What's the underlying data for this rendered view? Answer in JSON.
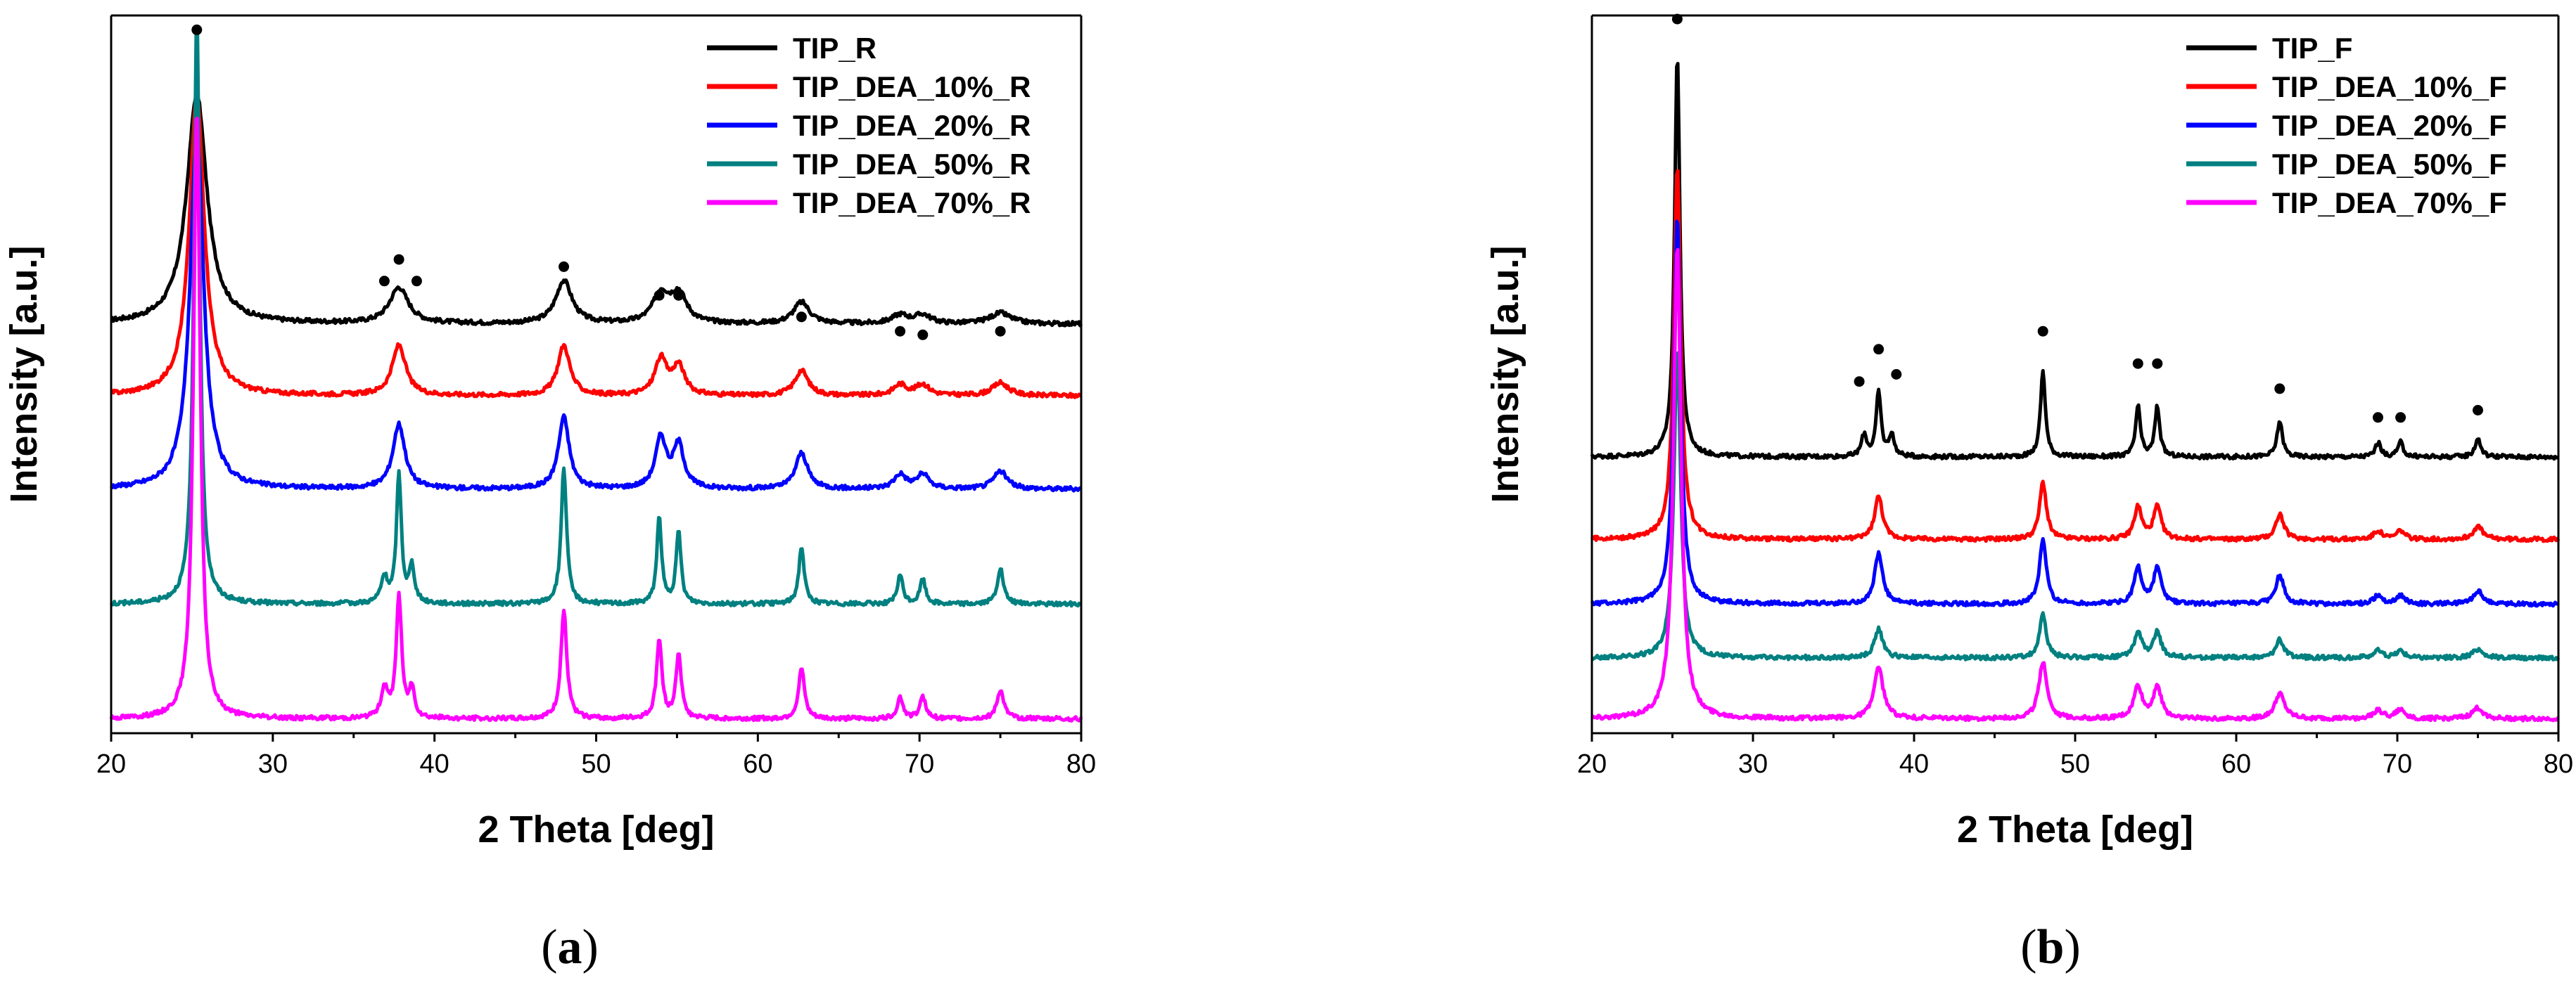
{
  "chart_data": [
    {
      "id": "a",
      "type": "line",
      "caption": "a",
      "xlabel": "2 Theta [deg]",
      "ylabel": "Intensity [a.u.]",
      "xlim": [
        20,
        80
      ],
      "ylim": [
        0,
        1
      ],
      "xticks": [
        20,
        30,
        40,
        50,
        60,
        70,
        80
      ],
      "grid": false,
      "legend_position": "top-right",
      "series": [
        {
          "name": "TIP_R",
          "color": "#000000",
          "offset": 0.57,
          "peaks": [
            [
              25.3,
              0.32,
              0.75
            ],
            [
              37.8,
              0.05,
              0.7
            ],
            [
              48.0,
              0.06,
              0.6
            ],
            [
              54.0,
              0.04,
              0.6
            ],
            [
              55.1,
              0.04,
              0.6
            ],
            [
              62.7,
              0.03,
              0.6
            ],
            [
              68.8,
              0.012,
              0.6
            ],
            [
              70.2,
              0.012,
              0.6
            ],
            [
              75.0,
              0.015,
              0.8
            ]
          ]
        },
        {
          "name": "TIP_DEA_10%_R",
          "color": "#ff0000",
          "offset": 0.47,
          "peaks": [
            [
              25.3,
              0.42,
              0.55
            ],
            [
              37.8,
              0.07,
              0.5
            ],
            [
              48.0,
              0.07,
              0.45
            ],
            [
              54.0,
              0.05,
              0.45
            ],
            [
              55.1,
              0.04,
              0.45
            ],
            [
              62.7,
              0.035,
              0.5
            ],
            [
              68.8,
              0.015,
              0.5
            ],
            [
              70.2,
              0.015,
              0.5
            ],
            [
              75.0,
              0.018,
              0.6
            ]
          ]
        },
        {
          "name": "TIP_DEA_20%_R",
          "color": "#0000ff",
          "offset": 0.34,
          "peaks": [
            [
              25.3,
              0.5,
              0.5
            ],
            [
              37.8,
              0.09,
              0.45
            ],
            [
              48.0,
              0.1,
              0.4
            ],
            [
              54.0,
              0.07,
              0.4
            ],
            [
              55.1,
              0.06,
              0.4
            ],
            [
              62.7,
              0.05,
              0.45
            ],
            [
              68.8,
              0.02,
              0.45
            ],
            [
              70.2,
              0.02,
              0.45
            ],
            [
              75.0,
              0.025,
              0.5
            ]
          ]
        },
        {
          "name": "TIP_DEA_50%_R",
          "color": "#008080",
          "offset": 0.18,
          "peaks": [
            [
              25.3,
              0.82,
              0.22
            ],
            [
              36.9,
              0.035,
              0.25
            ],
            [
              37.8,
              0.18,
              0.18
            ],
            [
              38.6,
              0.05,
              0.2
            ],
            [
              48.0,
              0.19,
              0.2
            ],
            [
              53.9,
              0.12,
              0.18
            ],
            [
              55.1,
              0.1,
              0.18
            ],
            [
              62.7,
              0.08,
              0.2
            ],
            [
              68.8,
              0.04,
              0.2
            ],
            [
              70.2,
              0.035,
              0.2
            ],
            [
              75.0,
              0.05,
              0.22
            ]
          ]
        },
        {
          "name": "TIP_DEA_70%_R",
          "color": "#ff00ff",
          "offset": 0.02,
          "peaks": [
            [
              25.3,
              0.85,
              0.25
            ],
            [
              36.9,
              0.04,
              0.25
            ],
            [
              37.8,
              0.17,
              0.2
            ],
            [
              38.6,
              0.04,
              0.2
            ],
            [
              48.0,
              0.15,
              0.22
            ],
            [
              53.9,
              0.11,
              0.2
            ],
            [
              55.1,
              0.09,
              0.2
            ],
            [
              62.7,
              0.07,
              0.22
            ],
            [
              68.8,
              0.03,
              0.22
            ],
            [
              70.2,
              0.03,
              0.22
            ],
            [
              75.0,
              0.04,
              0.25
            ]
          ]
        }
      ],
      "markers": [
        [
          25.3,
          0.98
        ],
        [
          36.9,
          0.63
        ],
        [
          37.8,
          0.66
        ],
        [
          38.9,
          0.63
        ],
        [
          48.0,
          0.65
        ],
        [
          53.9,
          0.61
        ],
        [
          55.1,
          0.61
        ],
        [
          62.7,
          0.58
        ],
        [
          68.8,
          0.56
        ],
        [
          70.2,
          0.555
        ],
        [
          75.0,
          0.56
        ]
      ]
    },
    {
      "id": "b",
      "type": "line",
      "caption": "b",
      "xlabel": "2 Theta [deg]",
      "ylabel": "Intensity [a.u.]",
      "xlim": [
        20,
        80
      ],
      "ylim": [
        0,
        1
      ],
      "xticks": [
        20,
        30,
        40,
        50,
        60,
        70,
        80
      ],
      "grid": false,
      "legend_position": "top-right",
      "series": [
        {
          "name": "TIP_F",
          "color": "#000000",
          "offset": 0.385,
          "peaks": [
            [
              25.3,
              0.56,
              0.2
            ],
            [
              36.9,
              0.03,
              0.2
            ],
            [
              37.8,
              0.09,
              0.18
            ],
            [
              38.6,
              0.03,
              0.2
            ],
            [
              48.0,
              0.12,
              0.18
            ],
            [
              53.9,
              0.07,
              0.18
            ],
            [
              55.1,
              0.07,
              0.18
            ],
            [
              62.7,
              0.05,
              0.2
            ],
            [
              68.8,
              0.02,
              0.2
            ],
            [
              70.2,
              0.02,
              0.2
            ],
            [
              75.0,
              0.025,
              0.22
            ]
          ]
        },
        {
          "name": "TIP_DEA_10%_F",
          "color": "#ff0000",
          "offset": 0.27,
          "peaks": [
            [
              25.3,
              0.52,
              0.25
            ],
            [
              37.8,
              0.06,
              0.3
            ],
            [
              48.0,
              0.08,
              0.25
            ],
            [
              53.9,
              0.045,
              0.28
            ],
            [
              55.1,
              0.045,
              0.28
            ],
            [
              62.7,
              0.035,
              0.3
            ],
            [
              68.8,
              0.012,
              0.3
            ],
            [
              70.2,
              0.012,
              0.3
            ],
            [
              75.0,
              0.018,
              0.35
            ]
          ]
        },
        {
          "name": "TIP_DEA_20%_F",
          "color": "#0000ff",
          "offset": 0.18,
          "peaks": [
            [
              25.3,
              0.54,
              0.25
            ],
            [
              37.8,
              0.07,
              0.3
            ],
            [
              48.0,
              0.09,
              0.25
            ],
            [
              53.9,
              0.05,
              0.28
            ],
            [
              55.1,
              0.05,
              0.28
            ],
            [
              62.7,
              0.04,
              0.3
            ],
            [
              68.8,
              0.012,
              0.3
            ],
            [
              70.2,
              0.012,
              0.3
            ],
            [
              75.0,
              0.018,
              0.35
            ]
          ]
        },
        {
          "name": "TIP_DEA_50%_F",
          "color": "#008080",
          "offset": 0.105,
          "peaks": [
            [
              25.3,
              0.43,
              0.25
            ],
            [
              37.8,
              0.04,
              0.3
            ],
            [
              48.0,
              0.06,
              0.25
            ],
            [
              53.9,
              0.035,
              0.28
            ],
            [
              55.1,
              0.035,
              0.28
            ],
            [
              62.7,
              0.025,
              0.3
            ],
            [
              68.8,
              0.01,
              0.3
            ],
            [
              70.2,
              0.01,
              0.3
            ],
            [
              75.0,
              0.012,
              0.35
            ]
          ]
        },
        {
          "name": "TIP_DEA_70%_F",
          "color": "#ff00ff",
          "offset": 0.02,
          "peaks": [
            [
              25.3,
              0.66,
              0.28
            ],
            [
              37.8,
              0.07,
              0.35
            ],
            [
              48.0,
              0.08,
              0.3
            ],
            [
              53.9,
              0.045,
              0.3
            ],
            [
              55.1,
              0.045,
              0.3
            ],
            [
              62.7,
              0.035,
              0.35
            ],
            [
              68.8,
              0.012,
              0.35
            ],
            [
              70.2,
              0.012,
              0.35
            ],
            [
              75.0,
              0.015,
              0.4
            ]
          ]
        }
      ],
      "markers": [
        [
          25.3,
          0.995
        ],
        [
          36.6,
          0.49
        ],
        [
          37.8,
          0.535
        ],
        [
          38.9,
          0.5
        ],
        [
          48.0,
          0.56
        ],
        [
          53.9,
          0.515
        ],
        [
          55.1,
          0.515
        ],
        [
          62.7,
          0.48
        ],
        [
          68.8,
          0.44
        ],
        [
          70.2,
          0.44
        ],
        [
          75.0,
          0.45
        ]
      ]
    }
  ]
}
